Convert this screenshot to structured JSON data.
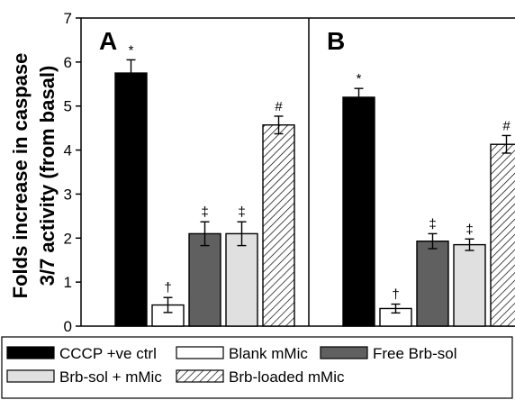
{
  "chart_data": {
    "type": "bar",
    "ylabel_line1": "Folds increase in caspase",
    "ylabel_line2": "3/7 activity (from basal)",
    "xlabel": "",
    "ylim": [
      0,
      7
    ],
    "yticks": [
      0,
      1,
      2,
      3,
      4,
      5,
      6,
      7
    ],
    "categories": [
      "CCCP +ve ctrl",
      "Blank mMic",
      "Free Brb-sol",
      "Brb-sol + mMic",
      "Brb-loaded mMic"
    ],
    "styles": [
      {
        "fill": "#000000",
        "pattern": "solid"
      },
      {
        "fill": "#ffffff",
        "pattern": "solid"
      },
      {
        "fill": "#606060",
        "pattern": "solid"
      },
      {
        "fill": "#e0e0e0",
        "pattern": "solid"
      },
      {
        "fill": "#ffffff",
        "pattern": "hatch"
      }
    ],
    "panels": [
      {
        "label": "A",
        "values": [
          5.75,
          0.48,
          2.1,
          2.1,
          4.57
        ],
        "errors": [
          0.3,
          0.17,
          0.27,
          0.27,
          0.2
        ],
        "annotations": [
          "*",
          "†",
          "‡",
          "‡",
          "#"
        ]
      },
      {
        "label": "B",
        "values": [
          5.2,
          0.4,
          1.93,
          1.85,
          4.13
        ],
        "errors": [
          0.2,
          0.1,
          0.17,
          0.13,
          0.2
        ],
        "annotations": [
          "*",
          "†",
          "‡",
          "‡",
          "#"
        ]
      }
    ],
    "legend": {
      "rows": [
        [
          "CCCP +ve ctrl",
          "Blank mMic",
          "Free Brb-sol"
        ],
        [
          "Brb-sol + mMic",
          "Brb-loaded mMic"
        ]
      ],
      "position": "bottom"
    }
  }
}
